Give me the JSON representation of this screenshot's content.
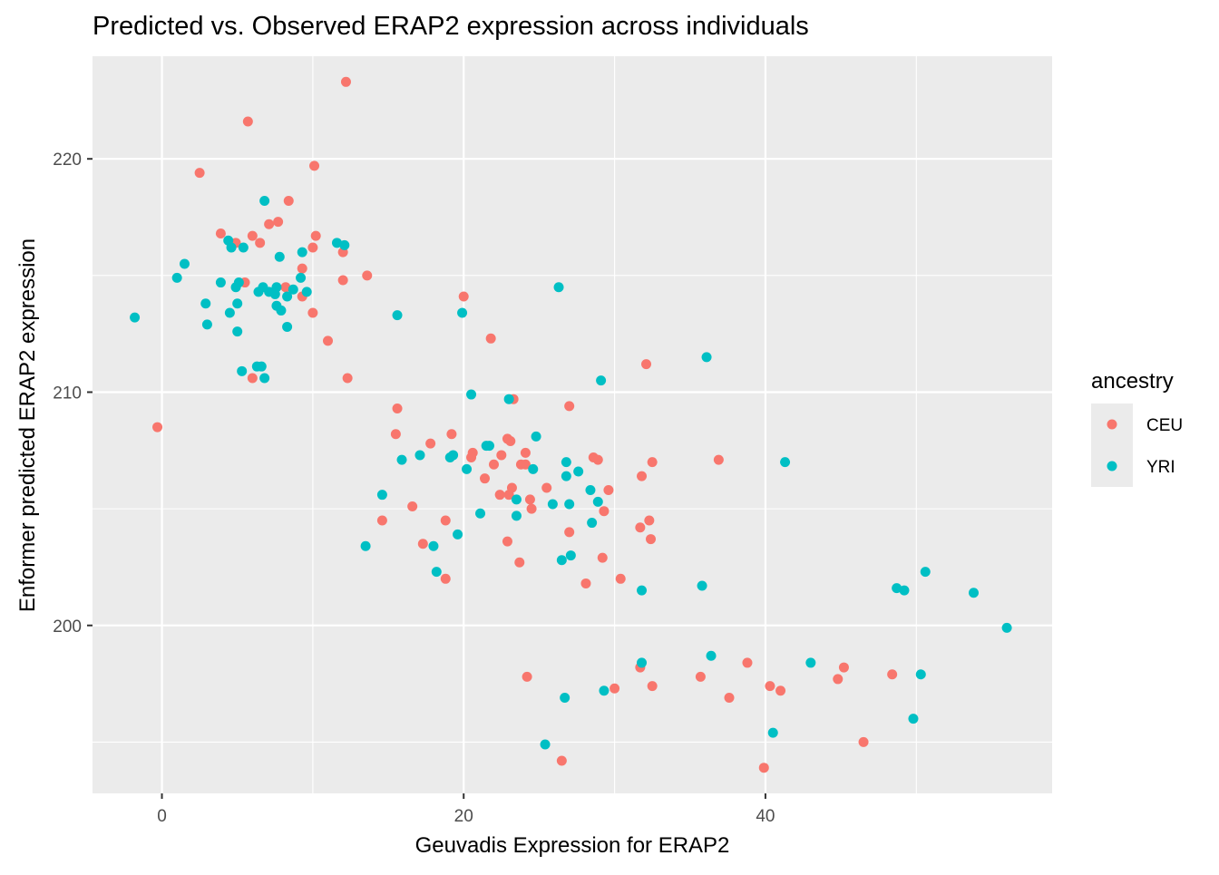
{
  "chart_data": {
    "type": "scatter",
    "title": "Predicted vs. Observed ERAP2 expression across individuals",
    "xlabel": "Geuvadis Expression for ERAP2",
    "ylabel": "Enformer predicted ERAP2 expression",
    "xlim": [
      -4.6,
      59
    ],
    "ylim": [
      192.8,
      224.4
    ],
    "x_ticks": [
      0,
      20,
      40
    ],
    "x_tick_labels": [
      "0",
      "20",
      "40"
    ],
    "y_ticks": [
      200,
      210,
      220
    ],
    "y_tick_labels": [
      "200",
      "210",
      "220"
    ],
    "grid": true,
    "legend": {
      "title": "ancestry",
      "placement": "right"
    },
    "series": [
      {
        "name": "CEU",
        "color": "#F8766D",
        "points": [
          [
            5.7,
            221.6
          ],
          [
            12.2,
            223.3
          ],
          [
            2.5,
            219.4
          ],
          [
            10.1,
            219.7
          ],
          [
            3.9,
            216.8
          ],
          [
            6.0,
            216.7
          ],
          [
            6.5,
            216.4
          ],
          [
            7.1,
            217.2
          ],
          [
            7.7,
            217.3
          ],
          [
            8.4,
            218.2
          ],
          [
            4.9,
            216.4
          ],
          [
            10.0,
            216.2
          ],
          [
            10.2,
            216.7
          ],
          [
            12.0,
            216.0
          ],
          [
            9.3,
            215.3
          ],
          [
            5.5,
            214.7
          ],
          [
            8.2,
            214.5
          ],
          [
            12.0,
            214.8
          ],
          [
            13.6,
            215.0
          ],
          [
            9.3,
            214.1
          ],
          [
            10.0,
            213.4
          ],
          [
            11.0,
            212.2
          ],
          [
            12.3,
            210.6
          ],
          [
            6.0,
            210.6
          ],
          [
            -0.3,
            208.5
          ],
          [
            20.0,
            214.1
          ],
          [
            21.8,
            212.3
          ],
          [
            32.1,
            211.2
          ],
          [
            23.3,
            209.7
          ],
          [
            27.0,
            209.4
          ],
          [
            15.6,
            209.3
          ],
          [
            15.5,
            208.2
          ],
          [
            19.2,
            208.2
          ],
          [
            17.8,
            207.8
          ],
          [
            20.6,
            207.4
          ],
          [
            20.5,
            207.2
          ],
          [
            22.5,
            207.3
          ],
          [
            24.1,
            207.4
          ],
          [
            22.9,
            208.0
          ],
          [
            23.1,
            207.9
          ],
          [
            22.0,
            206.9
          ],
          [
            21.4,
            206.3
          ],
          [
            23.8,
            206.9
          ],
          [
            24.1,
            206.9
          ],
          [
            28.6,
            207.2
          ],
          [
            28.9,
            207.1
          ],
          [
            32.5,
            207.0
          ],
          [
            36.9,
            207.1
          ],
          [
            31.8,
            206.4
          ],
          [
            22.4,
            205.6
          ],
          [
            23.0,
            205.6
          ],
          [
            23.2,
            205.9
          ],
          [
            24.4,
            205.4
          ],
          [
            24.5,
            205.0
          ],
          [
            25.5,
            205.9
          ],
          [
            29.6,
            205.8
          ],
          [
            29.3,
            204.9
          ],
          [
            16.6,
            205.1
          ],
          [
            14.6,
            204.5
          ],
          [
            18.8,
            204.5
          ],
          [
            27.0,
            204.0
          ],
          [
            31.7,
            204.2
          ],
          [
            32.3,
            204.5
          ],
          [
            32.4,
            203.7
          ],
          [
            17.3,
            203.5
          ],
          [
            22.9,
            203.6
          ],
          [
            23.7,
            202.7
          ],
          [
            29.2,
            202.9
          ],
          [
            18.8,
            202.0
          ],
          [
            28.1,
            201.8
          ],
          [
            30.4,
            202.0
          ],
          [
            24.2,
            197.8
          ],
          [
            30.0,
            197.3
          ],
          [
            31.7,
            198.2
          ],
          [
            32.5,
            197.4
          ],
          [
            35.7,
            197.8
          ],
          [
            37.6,
            196.9
          ],
          [
            38.8,
            198.4
          ],
          [
            40.3,
            197.4
          ],
          [
            41.0,
            197.2
          ],
          [
            44.8,
            197.7
          ],
          [
            45.2,
            198.2
          ],
          [
            48.4,
            197.9
          ],
          [
            46.5,
            195.0
          ],
          [
            39.9,
            193.9
          ],
          [
            26.5,
            194.2
          ]
        ]
      },
      {
        "name": "YRI",
        "color": "#00BFC4",
        "points": [
          [
            -1.8,
            213.2
          ],
          [
            1.0,
            214.9
          ],
          [
            1.5,
            215.5
          ],
          [
            2.9,
            213.8
          ],
          [
            3.0,
            212.9
          ],
          [
            3.9,
            214.7
          ],
          [
            4.4,
            216.5
          ],
          [
            4.6,
            216.2
          ],
          [
            5.4,
            216.2
          ],
          [
            4.9,
            214.5
          ],
          [
            5.1,
            214.7
          ],
          [
            5.0,
            213.8
          ],
          [
            4.5,
            213.4
          ],
          [
            5.0,
            212.6
          ],
          [
            5.3,
            210.9
          ],
          [
            6.3,
            211.1
          ],
          [
            6.6,
            211.1
          ],
          [
            6.8,
            210.6
          ],
          [
            6.4,
            214.3
          ],
          [
            6.7,
            214.5
          ],
          [
            7.1,
            214.3
          ],
          [
            7.5,
            214.2
          ],
          [
            7.6,
            214.5
          ],
          [
            7.6,
            213.7
          ],
          [
            7.9,
            213.5
          ],
          [
            7.8,
            215.8
          ],
          [
            6.8,
            218.2
          ],
          [
            8.3,
            214.1
          ],
          [
            8.7,
            214.4
          ],
          [
            8.3,
            212.8
          ],
          [
            9.2,
            214.9
          ],
          [
            9.3,
            216.0
          ],
          [
            9.6,
            214.3
          ],
          [
            11.6,
            216.4
          ],
          [
            12.1,
            216.3
          ],
          [
            13.5,
            203.4
          ],
          [
            14.6,
            205.6
          ],
          [
            15.6,
            213.3
          ],
          [
            15.9,
            207.1
          ],
          [
            17.1,
            207.3
          ],
          [
            18.0,
            203.4
          ],
          [
            18.2,
            202.3
          ],
          [
            19.1,
            207.2
          ],
          [
            19.3,
            207.3
          ],
          [
            19.6,
            203.9
          ],
          [
            19.9,
            213.4
          ],
          [
            20.2,
            206.7
          ],
          [
            20.5,
            209.9
          ],
          [
            21.1,
            204.8
          ],
          [
            21.5,
            207.7
          ],
          [
            21.7,
            207.7
          ],
          [
            23.0,
            209.7
          ],
          [
            23.5,
            205.4
          ],
          [
            23.5,
            204.7
          ],
          [
            24.6,
            206.7
          ],
          [
            24.8,
            208.1
          ],
          [
            25.9,
            205.2
          ],
          [
            26.3,
            214.5
          ],
          [
            26.5,
            202.8
          ],
          [
            26.8,
            207.0
          ],
          [
            26.8,
            206.4
          ],
          [
            27.0,
            205.2
          ],
          [
            27.1,
            203.0
          ],
          [
            27.6,
            206.6
          ],
          [
            28.4,
            205.8
          ],
          [
            28.5,
            204.4
          ],
          [
            28.9,
            205.3
          ],
          [
            29.1,
            210.5
          ],
          [
            31.8,
            201.5
          ],
          [
            35.8,
            201.7
          ],
          [
            36.1,
            211.5
          ],
          [
            41.3,
            207.0
          ],
          [
            31.8,
            198.4
          ],
          [
            36.4,
            198.7
          ],
          [
            43.0,
            198.4
          ],
          [
            29.3,
            197.2
          ],
          [
            26.7,
            196.9
          ],
          [
            25.4,
            194.9
          ],
          [
            40.5,
            195.4
          ],
          [
            48.7,
            201.6
          ],
          [
            49.2,
            201.5
          ],
          [
            50.6,
            202.3
          ],
          [
            53.8,
            201.4
          ],
          [
            56.0,
            199.9
          ],
          [
            50.3,
            197.9
          ],
          [
            49.8,
            196.0
          ]
        ]
      }
    ]
  }
}
